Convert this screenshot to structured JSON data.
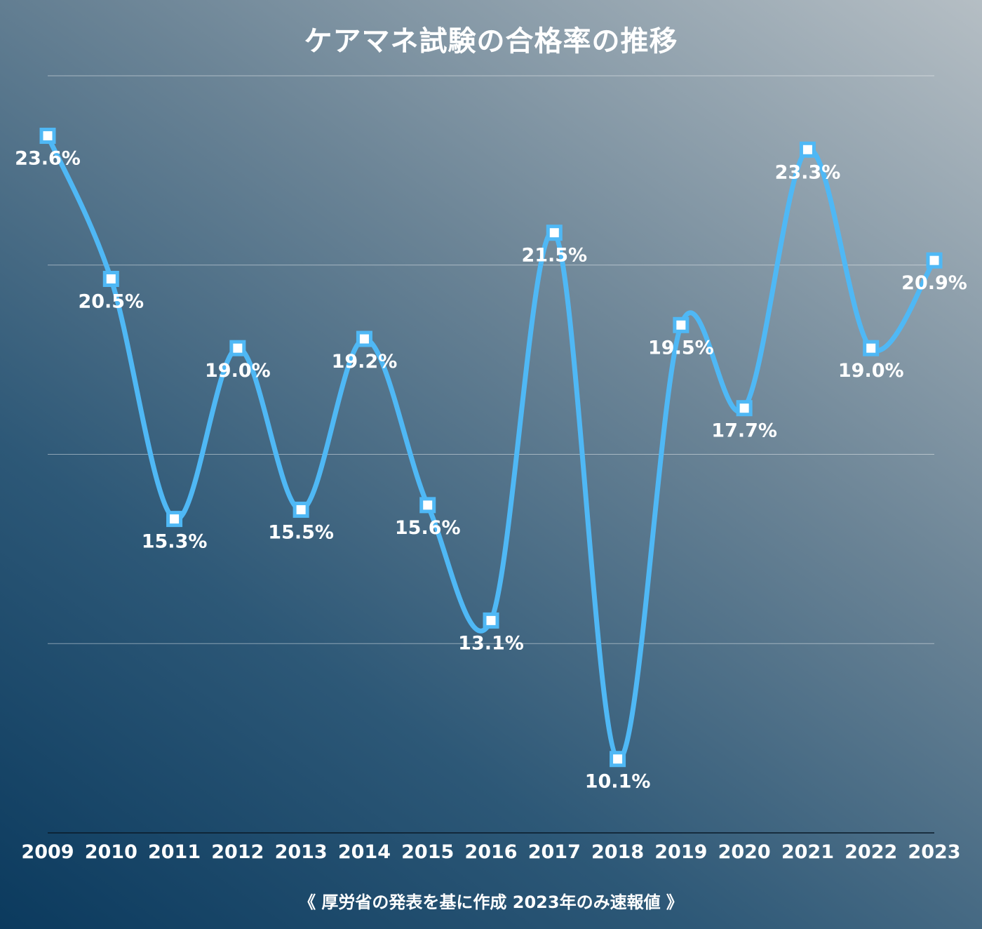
{
  "chart_data": {
    "type": "line",
    "title": "ケアマネ試験の合格率の推移",
    "footnote": "《 厚労省の発表を基に作成 2023年のみ速報値 》",
    "categories": [
      "2009",
      "2010",
      "2011",
      "2012",
      "2013",
      "2014",
      "2015",
      "2016",
      "2017",
      "2018",
      "2019",
      "2020",
      "2021",
      "2022",
      "2023"
    ],
    "series": [
      {
        "values": [
          23.6,
          20.5,
          15.3,
          19.0,
          15.5,
          19.2,
          15.6,
          13.1,
          21.5,
          10.1,
          19.5,
          17.7,
          23.3,
          19.0,
          20.9
        ],
        "labels": [
          "23.6%",
          "20.5%",
          "15.3%",
          "19.0%",
          "15.5%",
          "19.2%",
          "15.6%",
          "13.1%",
          "21.5%",
          "10.1%",
          "19.5%",
          "17.7%",
          "23.3%",
          "19.0%",
          "20.9%"
        ]
      }
    ],
    "ylim": [
      8.5,
      24.9
    ],
    "grid": true,
    "line_color": "#4fb8f5",
    "marker_fill": "#ffffff",
    "label_color": "#ffffff"
  }
}
